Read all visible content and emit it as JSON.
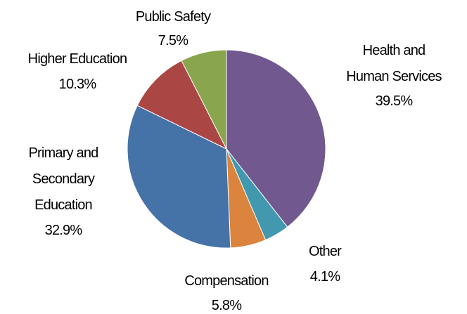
{
  "chart_data": {
    "type": "pie",
    "categories": [
      "Health and Human Services",
      "Other",
      "Compensation",
      "Primary and Secondary Education",
      "Higher Education",
      "Public Safety"
    ],
    "values": [
      39.5,
      4.1,
      5.8,
      32.9,
      10.3,
      7.5
    ],
    "value_labels": [
      "39.5%",
      "4.1%",
      "5.8%",
      "32.9%",
      "10.3%",
      "7.5%"
    ],
    "colors": [
      "#71588f",
      "#4198af",
      "#db843d",
      "#4572a7",
      "#aa4643",
      "#89a54e"
    ]
  }
}
